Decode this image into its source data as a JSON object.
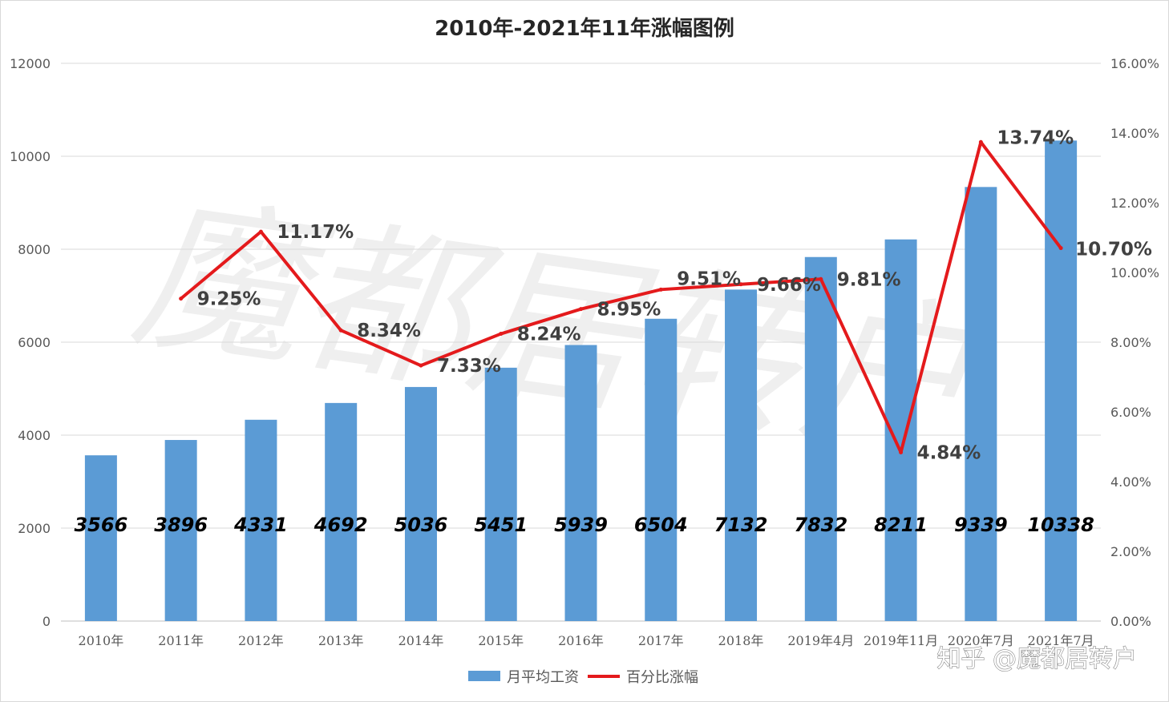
{
  "chart_data": {
    "type": "bar",
    "title": "2010年-2021年11年涨幅图例",
    "categories": [
      "2010年",
      "2011年",
      "2012年",
      "2013年",
      "2014年",
      "2015年",
      "2016年",
      "2017年",
      "2018年",
      "2019年4月",
      "2019年11月",
      "2020年7月",
      "2021年7月"
    ],
    "series": [
      {
        "name": "月平均工资",
        "type": "bar",
        "axis": "left",
        "color": "#5b9bd5",
        "values": [
          3566,
          3896,
          4331,
          4692,
          5036,
          5451,
          5939,
          6504,
          7132,
          7832,
          8211,
          9339,
          10338
        ],
        "labels": [
          "3566",
          "3896",
          "4331",
          "4692",
          "5036",
          "5451",
          "5939",
          "6504",
          "7132",
          "7832",
          "8211",
          "9339",
          "10338"
        ]
      },
      {
        "name": "百分比涨幅",
        "type": "line",
        "axis": "right",
        "color": "#e41a1c",
        "values": [
          null,
          9.25,
          11.17,
          8.34,
          7.33,
          8.24,
          8.95,
          9.51,
          9.66,
          9.81,
          4.84,
          13.74,
          10.7
        ],
        "labels": [
          "",
          "9.25%",
          "11.17%",
          "8.34%",
          "7.33%",
          "8.24%",
          "8.95%",
          "9.51%",
          "9.66%",
          "9.81%",
          "4.84%",
          "13.74%",
          "10.70%"
        ]
      }
    ],
    "y_left": {
      "min": 0,
      "max": 12000,
      "ticks": [
        "0",
        "2000",
        "4000",
        "6000",
        "8000",
        "10000",
        "12000"
      ]
    },
    "y_right": {
      "min": 0,
      "max": 16,
      "ticks": [
        "0.00%",
        "2.00%",
        "4.00%",
        "6.00%",
        "8.00%",
        "10.00%",
        "12.00%",
        "14.00%",
        "16.00%"
      ]
    },
    "grid": true,
    "legend_position": "bottom"
  },
  "watermark": {
    "text": "魔都居转户"
  },
  "credit": {
    "text": "知乎 @魔都居转户"
  }
}
